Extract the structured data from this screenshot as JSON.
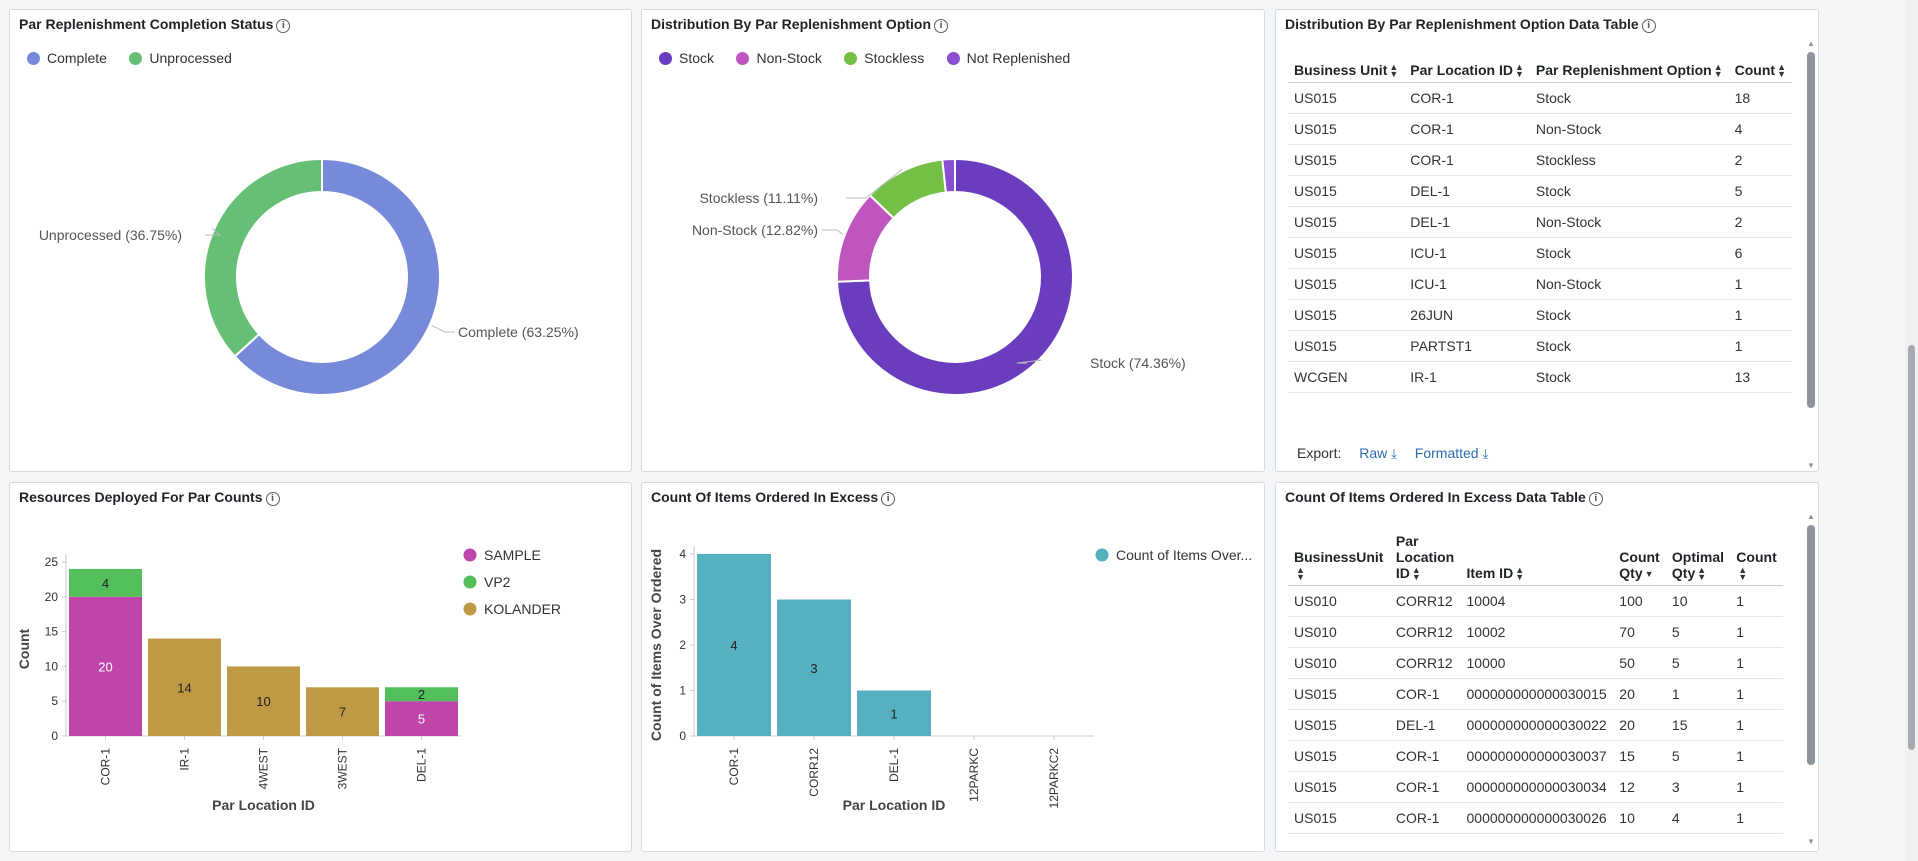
{
  "panels": {
    "completion": {
      "title": "Par Replenishment Completion Status",
      "legend": [
        {
          "label": "Complete",
          "color": "#7789d9"
        },
        {
          "label": "Unprocessed",
          "color": "#65bf74"
        }
      ]
    },
    "distribution": {
      "title": "Distribution By Par Replenishment Option",
      "legend": [
        {
          "label": "Stock",
          "color": "#6a3dbf"
        },
        {
          "label": "Non-Stock",
          "color": "#bf55bf"
        },
        {
          "label": "Stockless",
          "color": "#74bf45"
        },
        {
          "label": "Not Replenished",
          "color": "#8a4fd1"
        }
      ]
    },
    "dist_table": {
      "title": "Distribution By Par Replenishment Option Data Table",
      "columns": [
        "Business Unit",
        "Par Location ID",
        "Par Replenishment Option",
        "Count"
      ],
      "rows": [
        [
          "US015",
          "COR-1",
          "Stock",
          "18"
        ],
        [
          "US015",
          "COR-1",
          "Non-Stock",
          "4"
        ],
        [
          "US015",
          "COR-1",
          "Stockless",
          "2"
        ],
        [
          "US015",
          "DEL-1",
          "Stock",
          "5"
        ],
        [
          "US015",
          "DEL-1",
          "Non-Stock",
          "2"
        ],
        [
          "US015",
          "ICU-1",
          "Stock",
          "6"
        ],
        [
          "US015",
          "ICU-1",
          "Non-Stock",
          "1"
        ],
        [
          "US015",
          "26JUN",
          "Stock",
          "1"
        ],
        [
          "US015",
          "PARTST1",
          "Stock",
          "1"
        ],
        [
          "WCGEN",
          "IR-1",
          "Stock",
          "13"
        ]
      ],
      "export_label": "Export:",
      "raw_label": "Raw",
      "formatted_label": "Formatted"
    },
    "resources": {
      "title": "Resources Deployed For Par Counts"
    },
    "excess": {
      "title": "Count Of Items Ordered In Excess"
    },
    "excess_table": {
      "title": "Count Of Items Ordered In Excess Data Table",
      "columns": [
        {
          "lines": [
            "BusinessUnit"
          ]
        },
        {
          "lines": [
            "Par",
            "Location",
            "ID"
          ]
        },
        {
          "lines": [
            "Item ID"
          ]
        },
        {
          "lines": [
            "Count",
            "Qty"
          ],
          "sort": "desc"
        },
        {
          "lines": [
            "Optimal",
            "Qty"
          ]
        },
        {
          "lines": [
            "Count"
          ]
        }
      ],
      "rows": [
        [
          "US010",
          "CORR12",
          "10004",
          "100",
          "10",
          "1"
        ],
        [
          "US010",
          "CORR12",
          "10002",
          "70",
          "5",
          "1"
        ],
        [
          "US010",
          "CORR12",
          "10000",
          "50",
          "5",
          "1"
        ],
        [
          "US015",
          "COR-1",
          "000000000000030015",
          "20",
          "1",
          "1"
        ],
        [
          "US015",
          "DEL-1",
          "000000000000030022",
          "20",
          "15",
          "1"
        ],
        [
          "US015",
          "COR-1",
          "000000000000030037",
          "15",
          "5",
          "1"
        ],
        [
          "US015",
          "COR-1",
          "000000000000030034",
          "12",
          "3",
          "1"
        ],
        [
          "US015",
          "COR-1",
          "000000000000030026",
          "10",
          "4",
          "1"
        ]
      ]
    }
  },
  "chart_data": [
    {
      "id": "completion",
      "type": "pie",
      "title": "Par Replenishment Completion Status",
      "labels": [
        "Complete",
        "Unprocessed"
      ],
      "values": [
        63.25,
        36.75
      ],
      "slice_labels": [
        "Complete (63.25%)",
        "Unprocessed (36.75%)"
      ],
      "colors": [
        "#7789d9",
        "#65bf74"
      ]
    },
    {
      "id": "distribution",
      "type": "pie",
      "title": "Distribution By Par Replenishment Option",
      "labels": [
        "Stock",
        "Non-Stock",
        "Stockless",
        "Not Replenished"
      ],
      "values": [
        74.36,
        12.82,
        11.11,
        1.71
      ],
      "slice_labels": [
        "Stock (74.36%)",
        "Non-Stock (12.82%)",
        "Stockless (11.11%)",
        ""
      ],
      "colors": [
        "#6a3dbf",
        "#bf55bf",
        "#74bf45",
        "#8a4fd1"
      ]
    },
    {
      "id": "resources",
      "type": "bar",
      "stacked": true,
      "title": "Resources Deployed For Par Counts",
      "categories": [
        "COR-1",
        "IR-1",
        "4WEST",
        "3WEST",
        "DEL-1"
      ],
      "series": [
        {
          "name": "SAMPLE",
          "color": "#bf45a8",
          "values": [
            20,
            0,
            0,
            0,
            5
          ]
        },
        {
          "name": "VP2",
          "color": "#52bf5a",
          "values": [
            4,
            0,
            0,
            0,
            2
          ]
        },
        {
          "name": "KOLANDER",
          "color": "#bf9a45",
          "values": [
            0,
            14,
            10,
            7,
            0
          ]
        }
      ],
      "xlabel": "Par Location ID",
      "ylabel": "Count",
      "ylim": [
        0,
        25
      ],
      "yticks": [
        "0",
        "5",
        "10",
        "15",
        "20",
        "25"
      ]
    },
    {
      "id": "excess",
      "type": "bar",
      "title": "Count Of Items Ordered In Excess",
      "categories": [
        "COR-1",
        "CORR12",
        "DEL-1",
        "12PARKC",
        "12PARKC2"
      ],
      "series": [
        {
          "name": "Count of Items Over...",
          "color": "#55b0c0",
          "values": [
            4,
            3,
            1,
            0,
            0
          ]
        }
      ],
      "data_labels": [
        "4",
        "3",
        "1",
        "",
        ""
      ],
      "xlabel": "Par Location ID",
      "ylabel": "Count of Items Over Ordered",
      "ylim": [
        0,
        4
      ],
      "yticks": [
        "0",
        "1",
        "2",
        "3",
        "4"
      ]
    }
  ]
}
